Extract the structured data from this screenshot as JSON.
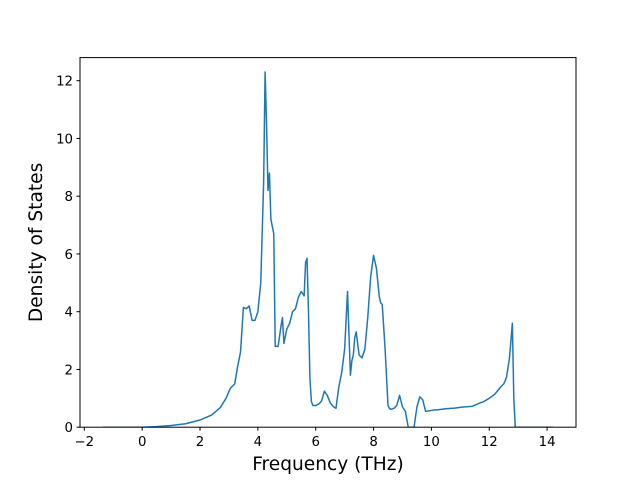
{
  "chart_data": {
    "type": "line",
    "title": "",
    "xlabel": "Frequency (THz)",
    "ylabel": "Density of States",
    "xlim": [
      -2.15,
      15.0
    ],
    "ylim": [
      0,
      12.8
    ],
    "xticks": [
      -2,
      0,
      2,
      4,
      6,
      8,
      10,
      12,
      14
    ],
    "xtick_labels": [
      "−2",
      "0",
      "2",
      "4",
      "6",
      "8",
      "10",
      "12",
      "14"
    ],
    "yticks": [
      0,
      2,
      4,
      6,
      8,
      10,
      12
    ],
    "ytick_labels": [
      "0",
      "2",
      "4",
      "6",
      "8",
      "10",
      "12"
    ],
    "grid": false,
    "legend": "none",
    "series": [
      {
        "color": "#1f77b4",
        "x": [
          -1.35,
          -1.0,
          -0.5,
          0.0,
          0.5,
          1.0,
          1.5,
          2.0,
          2.4,
          2.7,
          2.9,
          3.05,
          3.2,
          3.3,
          3.4,
          3.5,
          3.6,
          3.7,
          3.8,
          3.9,
          4.0,
          4.1,
          4.2,
          4.25,
          4.3,
          4.35,
          4.4,
          4.45,
          4.55,
          4.6,
          4.65,
          4.7,
          4.8,
          4.85,
          4.9,
          5.0,
          5.1,
          5.2,
          5.3,
          5.4,
          5.5,
          5.6,
          5.65,
          5.7,
          5.75,
          5.8,
          5.85,
          5.9,
          6.0,
          6.1,
          6.2,
          6.3,
          6.4,
          6.5,
          6.6,
          6.7,
          6.8,
          6.9,
          7.0,
          7.1,
          7.2,
          7.25,
          7.3,
          7.35,
          7.4,
          7.5,
          7.6,
          7.7,
          7.8,
          7.9,
          8.0,
          8.1,
          8.2,
          8.25,
          8.3,
          8.4,
          8.5,
          8.55,
          8.6,
          8.7,
          8.8,
          8.9,
          9.0,
          9.1,
          9.2,
          9.3,
          9.4,
          9.5,
          9.6,
          9.7,
          9.8,
          9.9,
          10.0,
          10.1,
          10.2,
          10.5,
          10.8,
          11.1,
          11.4,
          11.7,
          11.8,
          12.0,
          12.2,
          12.4,
          12.5,
          12.55,
          12.6,
          12.7,
          12.8,
          12.85,
          12.9,
          12.95,
          13.0,
          13.1,
          13.3,
          13.6,
          14.0,
          14.2
        ],
        "y": [
          0.0,
          0.0,
          0.0,
          0.0,
          0.02,
          0.06,
          0.12,
          0.25,
          0.42,
          0.68,
          1.0,
          1.35,
          1.5,
          2.1,
          2.6,
          4.15,
          4.1,
          4.2,
          3.7,
          3.7,
          4.0,
          5.0,
          8.5,
          12.3,
          10.5,
          8.2,
          8.8,
          7.2,
          6.7,
          2.8,
          2.8,
          2.8,
          3.5,
          3.8,
          2.9,
          3.4,
          3.6,
          4.0,
          4.1,
          4.5,
          4.7,
          4.55,
          5.7,
          5.85,
          4.0,
          1.7,
          0.9,
          0.75,
          0.75,
          0.8,
          0.9,
          1.25,
          1.1,
          0.85,
          0.72,
          0.65,
          1.4,
          1.9,
          2.7,
          4.7,
          1.8,
          2.3,
          2.5,
          3.1,
          3.3,
          2.5,
          2.4,
          2.7,
          3.8,
          5.2,
          5.95,
          5.5,
          4.5,
          4.3,
          4.25,
          2.7,
          0.75,
          0.65,
          0.62,
          0.65,
          0.75,
          1.1,
          0.7,
          0.55,
          0.0,
          0.0,
          0.0,
          0.7,
          1.05,
          0.95,
          0.55,
          0.56,
          0.58,
          0.6,
          0.6,
          0.64,
          0.66,
          0.7,
          0.72,
          0.85,
          0.88,
          1.0,
          1.15,
          1.4,
          1.5,
          1.6,
          1.75,
          2.4,
          3.6,
          1.0,
          0.0,
          0.0,
          0.0,
          0.0,
          0.0,
          0.0,
          0.0,
          0.0
        ]
      }
    ]
  }
}
